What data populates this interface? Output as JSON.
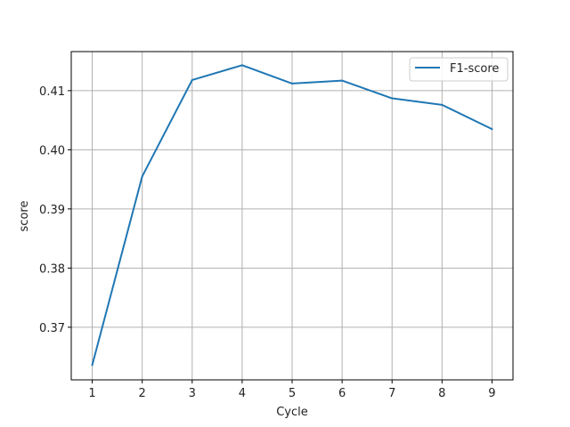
{
  "chart_data": {
    "type": "line",
    "title": "",
    "xlabel": "Cycle",
    "ylabel": "score",
    "x": [
      1,
      2,
      3,
      4,
      5,
      6,
      7,
      8,
      9
    ],
    "xticks": [
      "1",
      "2",
      "3",
      "4",
      "5",
      "6",
      "7",
      "8",
      "9"
    ],
    "yticks": [
      "0.37",
      "0.38",
      "0.39",
      "0.40",
      "0.41"
    ],
    "ytick_values": [
      0.37,
      0.38,
      0.39,
      0.4,
      0.41
    ],
    "xlim": [
      0.58,
      9.42
    ],
    "ylim": [
      0.3611,
      0.4166
    ],
    "grid": true,
    "legend_position": "top-right",
    "series": [
      {
        "name": "F1-score",
        "color": "#1f77b4",
        "values": [
          0.3636,
          0.3955,
          0.4118,
          0.4143,
          0.4112,
          0.4117,
          0.4087,
          0.4076,
          0.4035
        ]
      }
    ]
  }
}
